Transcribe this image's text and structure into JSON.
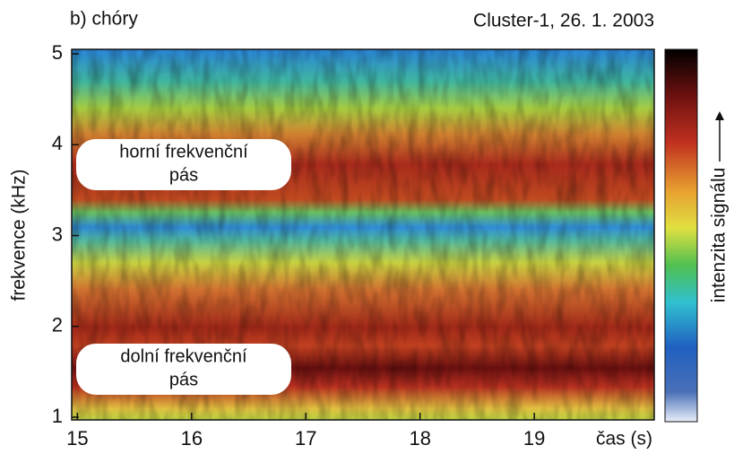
{
  "chart_data": {
    "type": "spectrogram",
    "title": "b) chóry",
    "subtitle": "Cluster-1, 26. 1. 2003",
    "x_label": "čas (s)",
    "y_label": "frekvence (kHz)",
    "colorbar_label": "intenzita signálu",
    "xlim": [
      14.95,
      20.05
    ],
    "xticks": [
      15,
      16,
      17,
      18,
      19
    ],
    "ylim": [
      0.97,
      5.05
    ],
    "yticks": [
      1,
      2,
      3,
      4,
      5
    ],
    "annotations": [
      {
        "lines": [
          "horní frekvenční",
          "pás"
        ]
      },
      {
        "lines": [
          "dolní frekvenční",
          "pás"
        ]
      }
    ]
  }
}
